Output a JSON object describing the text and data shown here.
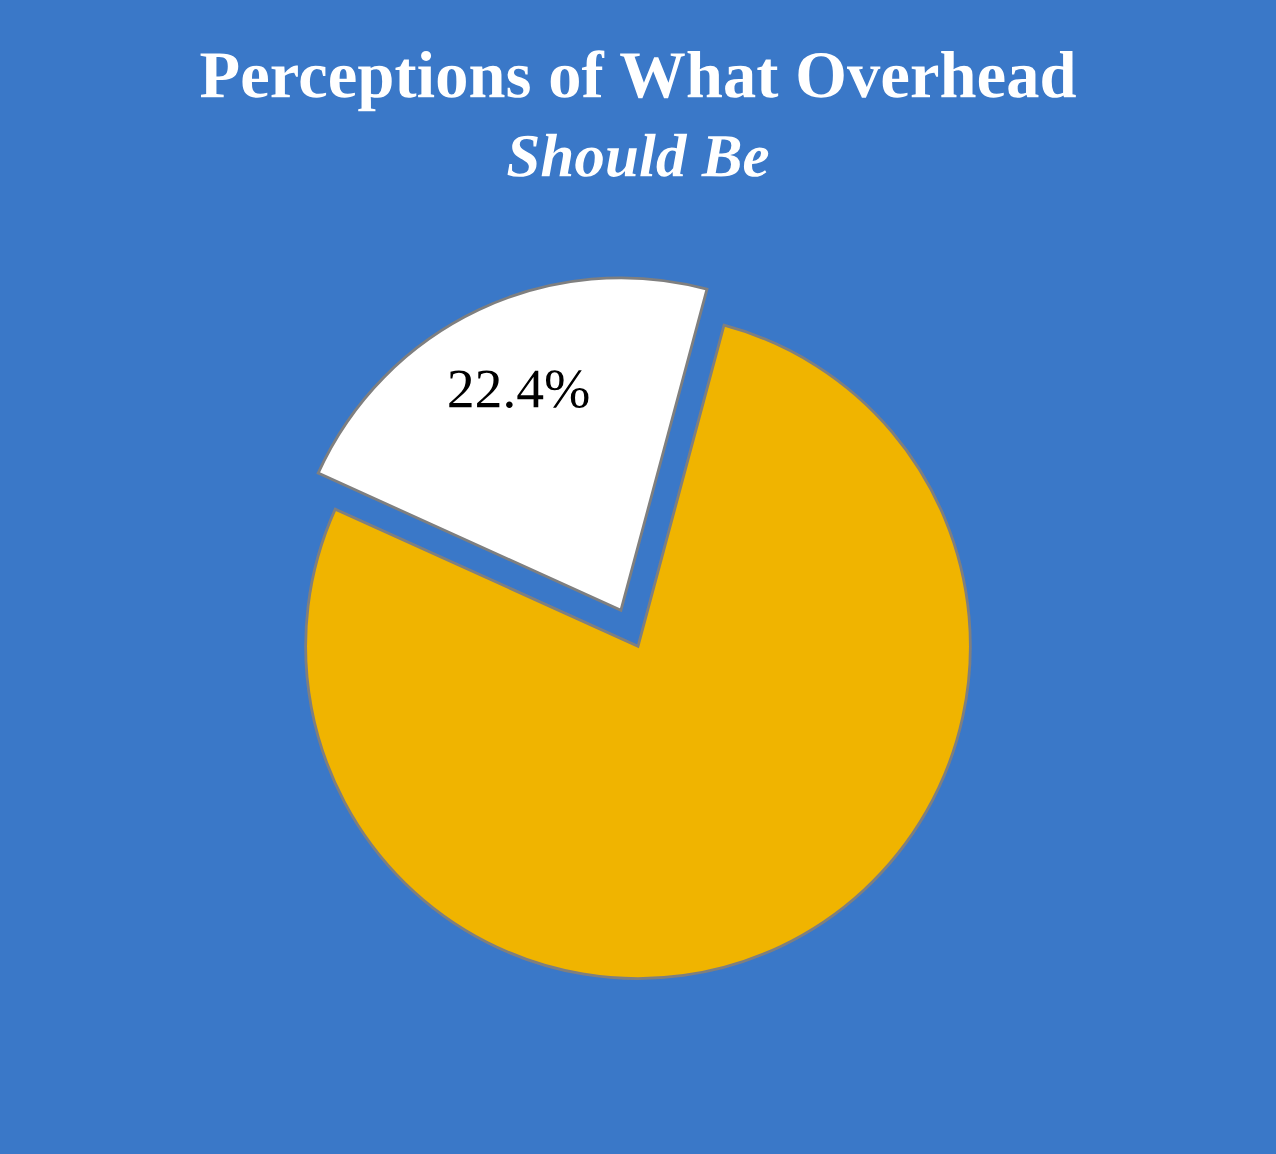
{
  "chart_data": {
    "type": "pie",
    "title": "Perceptions of What Overhead",
    "subtitle": "Should Be",
    "categories": [
      null,
      null
    ],
    "values": [
      22.4,
      77.6
    ],
    "colors": [
      "#ffffff",
      "#f0b400"
    ],
    "value_labels": [
      "22.4%",
      null
    ]
  }
}
